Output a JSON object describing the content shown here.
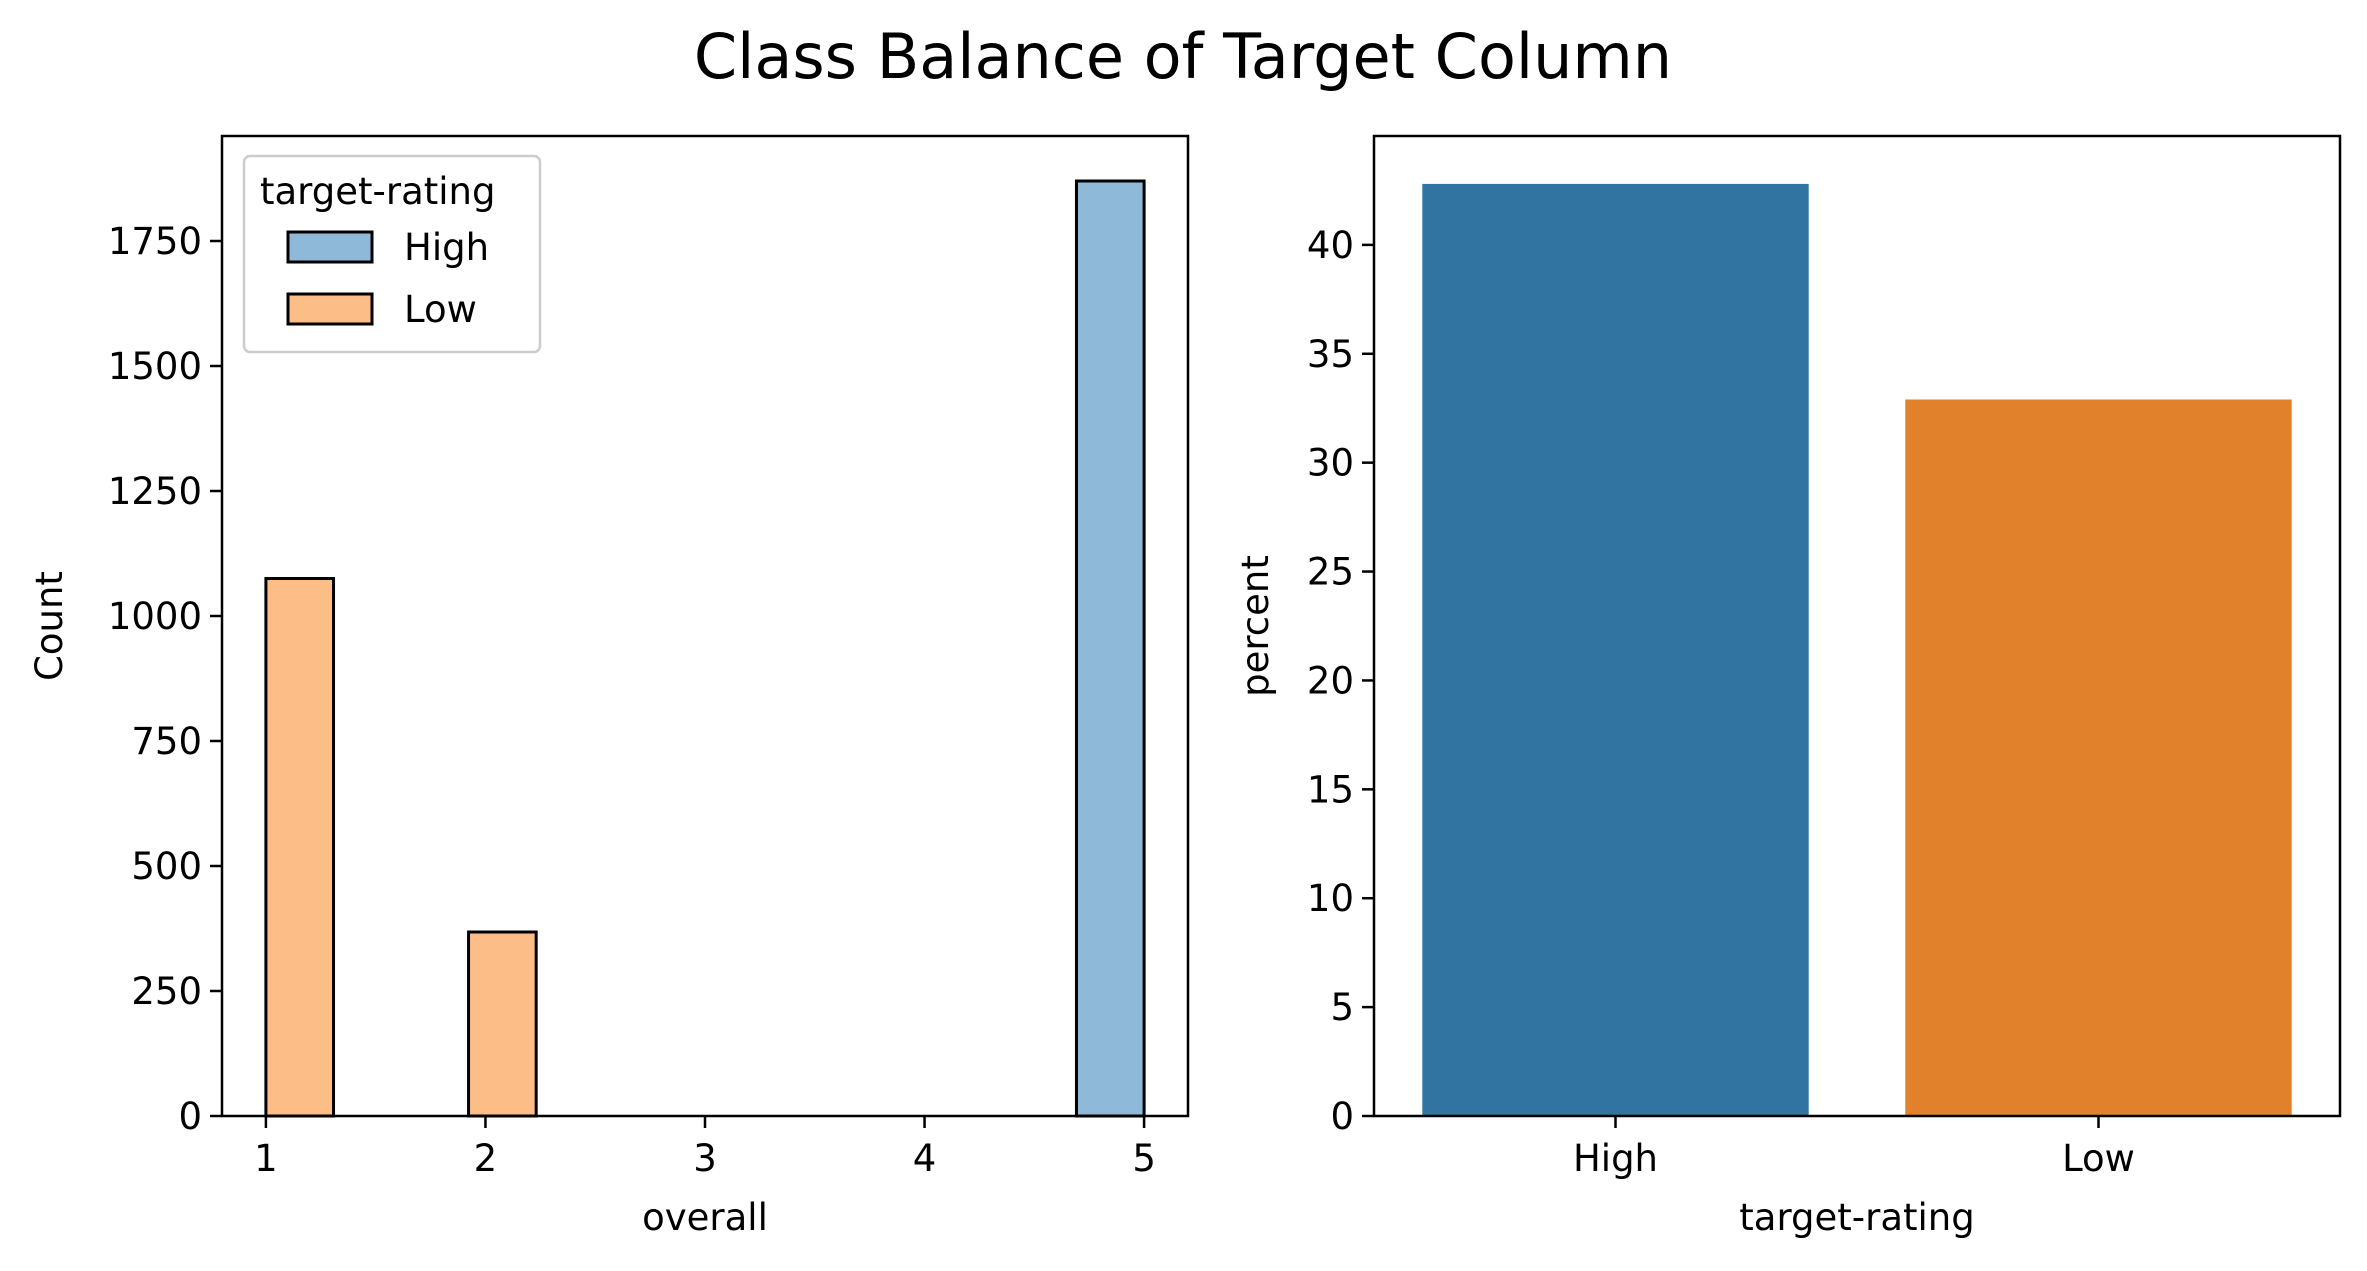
{
  "figure": {
    "title": "Class Balance of Target Column"
  },
  "chart_data": [
    {
      "type": "bar",
      "subtype": "histogram",
      "xlabel": "overall",
      "ylabel": "Count",
      "xlim": [
        0.8,
        5.2
      ],
      "ylim": [
        0,
        1960
      ],
      "xticks": [
        1,
        2,
        3,
        4,
        5
      ],
      "yticks": [
        0,
        250,
        500,
        750,
        1000,
        1250,
        1500,
        1750
      ],
      "legend": {
        "title": "target-rating",
        "placement": "top-left",
        "entries": [
          "High",
          "Low"
        ]
      },
      "bin_width": 0.3077,
      "series": [
        {
          "name": "High",
          "color": "#8fb9d9",
          "bins": [
            {
              "x0": 4.692,
              "x1": 5.0,
              "count": 1870
            }
          ]
        },
        {
          "name": "Low",
          "color": "#fdbd86",
          "bins": [
            {
              "x0": 1.0,
              "x1": 1.308,
              "count": 1075
            },
            {
              "x0": 1.923,
              "x1": 2.231,
              "count": 368
            }
          ]
        }
      ],
      "grid": false
    },
    {
      "type": "bar",
      "xlabel": "target-rating",
      "ylabel": "percent",
      "categories": [
        "High",
        "Low"
      ],
      "values": [
        42.8,
        32.9
      ],
      "colors": [
        "#3274a1",
        "#e1812c"
      ],
      "ylim": [
        0,
        45
      ],
      "yticks": [
        0,
        5,
        10,
        15,
        20,
        25,
        30,
        35,
        40
      ],
      "grid": false
    }
  ]
}
